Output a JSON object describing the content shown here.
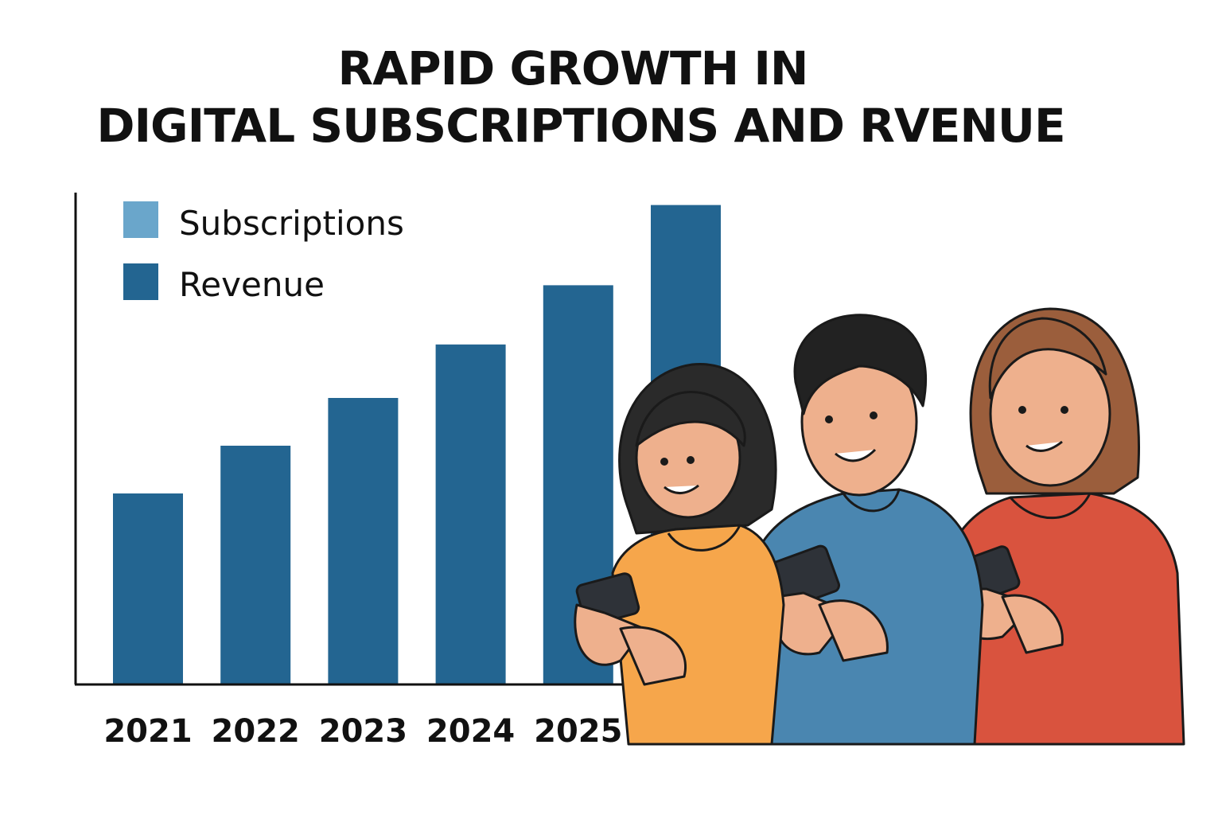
{
  "chart_data": {
    "type": "bar",
    "title_line1": "RAPID GROWTH IN",
    "title_line2": "DIGITAL SUBSCRIPTIONS AND RVENUE",
    "xlabel": "",
    "ylabel": "",
    "categories": [
      "2021",
      "2022",
      "2023",
      "2024",
      "2025",
      ""
    ],
    "series": [
      {
        "name": "Revenue",
        "color": "#236591",
        "values": [
          100,
          125,
          150,
          178,
          209,
          251
        ]
      }
    ],
    "legend": {
      "placement": "top-left",
      "entries": [
        {
          "label": "Subscriptions",
          "color": "#6aa6cb"
        },
        {
          "label": "Revenue",
          "color": "#236591"
        }
      ]
    },
    "grid": false,
    "y_ticks_shown": false
  },
  "illustration": {
    "description_icons": [
      "person-girl-icon",
      "person-boy-icon",
      "person-woman-icon",
      "smartphone-icon"
    ],
    "colors": {
      "skin": "#eeb08d",
      "shirt_orange": "#f6a64b",
      "shirt_blue": "#4a86b0",
      "shirt_red": "#d9533e",
      "hair_dark": "#2a2a2a",
      "hair_brown": "#9b5e3c",
      "phone": "#2e3238"
    }
  }
}
